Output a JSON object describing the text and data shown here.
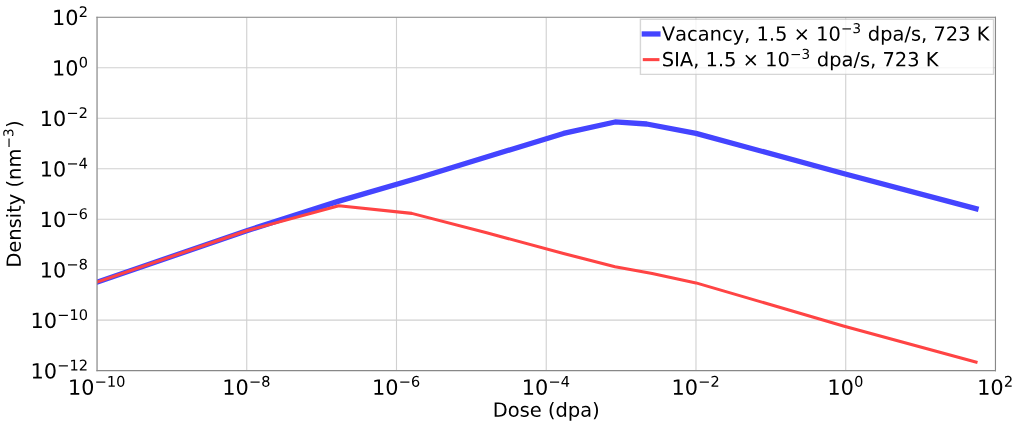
{
  "chart_data": {
    "type": "line",
    "xlabel": "Dose (dpa)",
    "ylabel": "Density (nm$^{−3}$)",
    "log": "xy",
    "grid": true,
    "legend": "top right",
    "line_style": "solid",
    "xlim": [
      1e-10,
      100
    ],
    "ylim": [
      1e-12,
      100
    ],
    "xticks": [
      {
        "value": 1e-10,
        "label": "10$^{−10}$"
      },
      {
        "value": 1e-08,
        "label": "10$^{−8}$"
      },
      {
        "value": 1e-06,
        "label": "10$^{−6}$"
      },
      {
        "value": 0.0001,
        "label": "10$^{−4}$"
      },
      {
        "value": 0.01,
        "label": "10$^{−2}$"
      },
      {
        "value": 1,
        "label": "10$^{0}$"
      },
      {
        "value": 100,
        "label": "10$^{2}$"
      }
    ],
    "yticks": [
      {
        "value": 1e-12,
        "label": "10$^{−12}$"
      },
      {
        "value": 1e-10,
        "label": "10$^{−10}$"
      },
      {
        "value": 1e-08,
        "label": "10$^{−8}$"
      },
      {
        "value": 1e-06,
        "label": "10$^{−6}$"
      },
      {
        "value": 0.0001,
        "label": "10$^{−4}$"
      },
      {
        "value": 0.01,
        "label": "10$^{−2}$"
      },
      {
        "value": 1,
        "label": "10$^{0}$"
      },
      {
        "value": 100,
        "label": "10$^{2}$"
      }
    ],
    "series": [
      {
        "name": "Vacancy, 1.5 × 10$^{−3}$ dpa/s, 723 K",
        "color": "#4444ff",
        "x": [
          1e-10,
          1e-08,
          1.7e-07,
          1.9e-06,
          0.00017,
          0.00083,
          0.0022,
          0.01,
          0.93,
          55
        ],
        "values": [
          3.2e-09,
          3.5e-07,
          5.2e-06,
          4.2e-05,
          0.0025,
          0.0071,
          0.0059,
          0.0025,
          6.5e-05,
          2.6e-06
        ]
      },
      {
        "name": "SIA, 1.5 × 10$^{−3}$ dpa/s, 723 K",
        "color": "#ff4444",
        "x": [
          1e-10,
          1e-08,
          1.7e-07,
          1.6e-06,
          1.6e-05,
          0.00017,
          0.00083,
          0.0026,
          0.01,
          0.93,
          55
        ],
        "values": [
          3.2e-09,
          3.5e-07,
          3.4e-06,
          1.7e-06,
          2.9e-07,
          4.4e-08,
          1.3e-08,
          7.1e-09,
          3e-09,
          5.9e-11,
          2.2e-12
        ]
      }
    ]
  }
}
